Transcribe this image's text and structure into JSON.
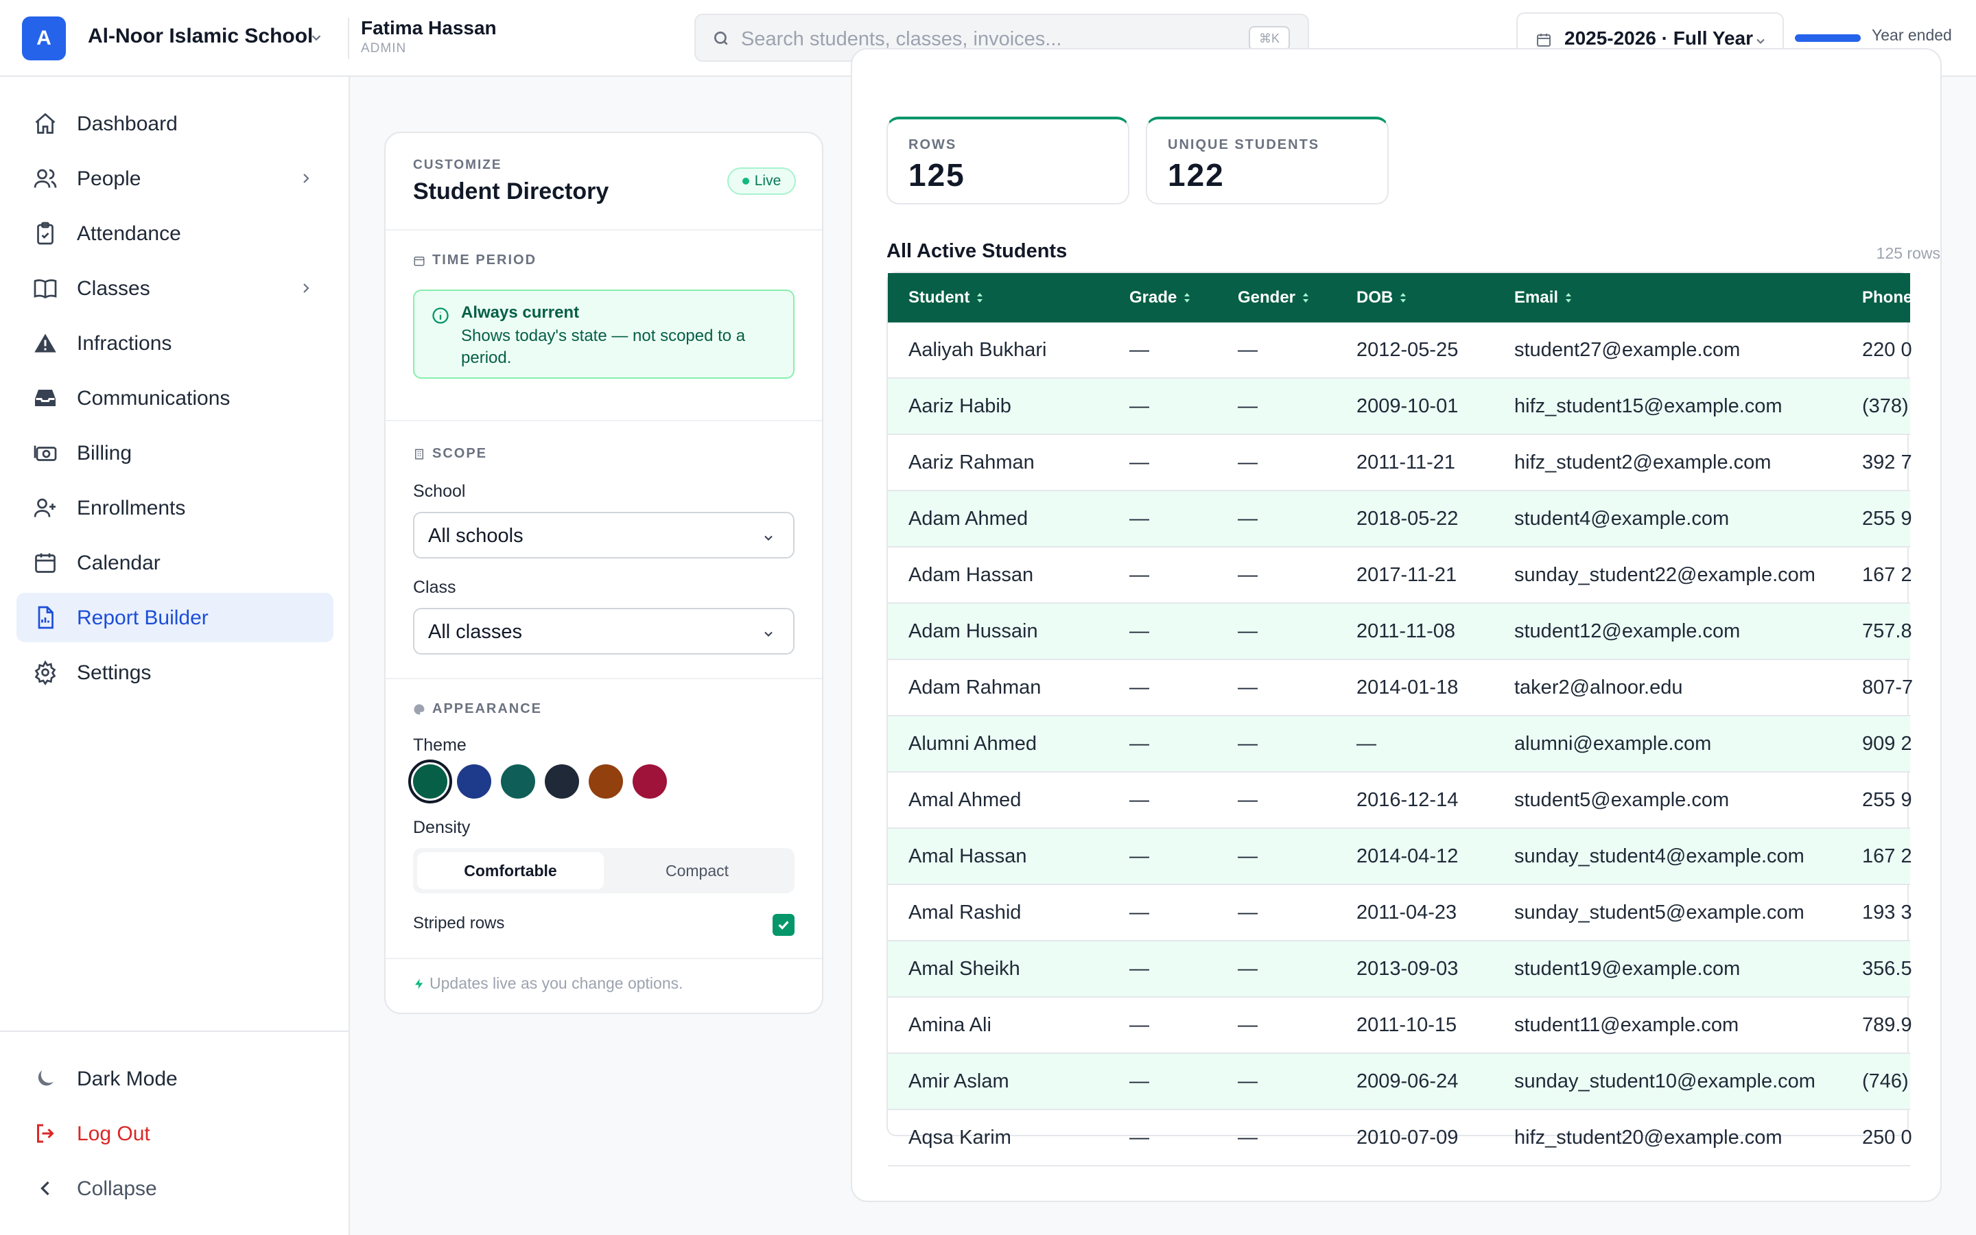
{
  "header": {
    "logo_letter": "A",
    "school_name": "Al-Noor Islamic School",
    "user_name": "Fatima Hassan",
    "user_role": "ADMIN",
    "search_placeholder": "Search students, classes, invoices...",
    "search_shortcut": "⌘K",
    "year_label": "2025-2026 · Full Year",
    "year_progress_fraction": 1.0,
    "year_status": "Year ended"
  },
  "sidebar": {
    "items": [
      {
        "label": "Dashboard",
        "icon": "home-icon"
      },
      {
        "label": "People",
        "icon": "users-icon",
        "has_submenu": true
      },
      {
        "label": "Attendance",
        "icon": "clipboard-check-icon"
      },
      {
        "label": "Classes",
        "icon": "book-icon",
        "has_submenu": true
      },
      {
        "label": "Infractions",
        "icon": "warning-icon"
      },
      {
        "label": "Communications",
        "icon": "inbox-icon"
      },
      {
        "label": "Billing",
        "icon": "cash-icon"
      },
      {
        "label": "Enrollments",
        "icon": "user-plus-icon"
      },
      {
        "label": "Calendar",
        "icon": "calendar-icon"
      },
      {
        "label": "Report Builder",
        "icon": "report-icon",
        "active": true
      },
      {
        "label": "Settings",
        "icon": "gear-icon"
      }
    ],
    "footer": {
      "dark_mode": "Dark Mode",
      "logout": "Log Out",
      "collapse": "Collapse"
    }
  },
  "customize": {
    "eyebrow": "CUSTOMIZE",
    "title": "Student Directory",
    "live_badge": "Live",
    "time_period": {
      "heading": "TIME PERIOD",
      "info_title": "Always current",
      "info_desc": "Shows today's state — not scoped to a period."
    },
    "scope": {
      "heading": "SCOPE",
      "school_label": "School",
      "school_value": "All schools",
      "class_label": "Class",
      "class_value": "All classes"
    },
    "appearance": {
      "heading": "APPEARANCE",
      "theme_label": "Theme",
      "theme_colors": [
        "#065f46",
        "#1e3a8a",
        "#0f5e57",
        "#1f2937",
        "#92400e",
        "#9f1239"
      ],
      "selected_theme_index": 0,
      "density_label": "Density",
      "density_options": [
        "Comfortable",
        "Compact"
      ],
      "density_selected": "Comfortable",
      "striped_label": "Striped rows",
      "striped_checked": true
    },
    "footer_note": "Updates live as you change options."
  },
  "stats": {
    "rows_label": "ROWS",
    "rows_value": "125",
    "unique_label": "UNIQUE STUDENTS",
    "unique_value": "122"
  },
  "table": {
    "title": "All Active Students",
    "row_count": "125 rows",
    "columns": [
      "Student",
      "Grade",
      "Gender",
      "DOB",
      "Email",
      "Phone"
    ],
    "rows": [
      [
        "Aaliyah Bukhari",
        "—",
        "—",
        "2012-05-25",
        "student27@example.com",
        "220 0"
      ],
      [
        "Aariz Habib",
        "—",
        "—",
        "2009-10-01",
        "hifz_student15@example.com",
        "(378)"
      ],
      [
        "Aariz Rahman",
        "—",
        "—",
        "2011-11-21",
        "hifz_student2@example.com",
        "392 7"
      ],
      [
        "Adam Ahmed",
        "—",
        "—",
        "2018-05-22",
        "student4@example.com",
        "255 9"
      ],
      [
        "Adam Hassan",
        "—",
        "—",
        "2017-11-21",
        "sunday_student22@example.com",
        "167 2"
      ],
      [
        "Adam Hussain",
        "—",
        "—",
        "2011-11-08",
        "student12@example.com",
        "757.8"
      ],
      [
        "Adam Rahman",
        "—",
        "—",
        "2014-01-18",
        "taker2@alnoor.edu",
        "807-7"
      ],
      [
        "Alumni Ahmed",
        "—",
        "—",
        "—",
        "alumni@example.com",
        "909 2"
      ],
      [
        "Amal Ahmed",
        "—",
        "—",
        "2016-12-14",
        "student5@example.com",
        "255 9"
      ],
      [
        "Amal Hassan",
        "—",
        "—",
        "2014-04-12",
        "sunday_student4@example.com",
        "167 2"
      ],
      [
        "Amal Rashid",
        "—",
        "—",
        "2011-04-23",
        "sunday_student5@example.com",
        "193 3"
      ],
      [
        "Amal Sheikh",
        "—",
        "—",
        "2013-09-03",
        "student19@example.com",
        "356.5"
      ],
      [
        "Amina Ali",
        "—",
        "—",
        "2011-10-15",
        "student11@example.com",
        "789.9"
      ],
      [
        "Amir Aslam",
        "—",
        "—",
        "2009-06-24",
        "sunday_student10@example.com",
        "(746)"
      ],
      [
        "Aqsa Karim",
        "—",
        "—",
        "2010-07-09",
        "hifz_student20@example.com",
        "250 0"
      ]
    ]
  }
}
